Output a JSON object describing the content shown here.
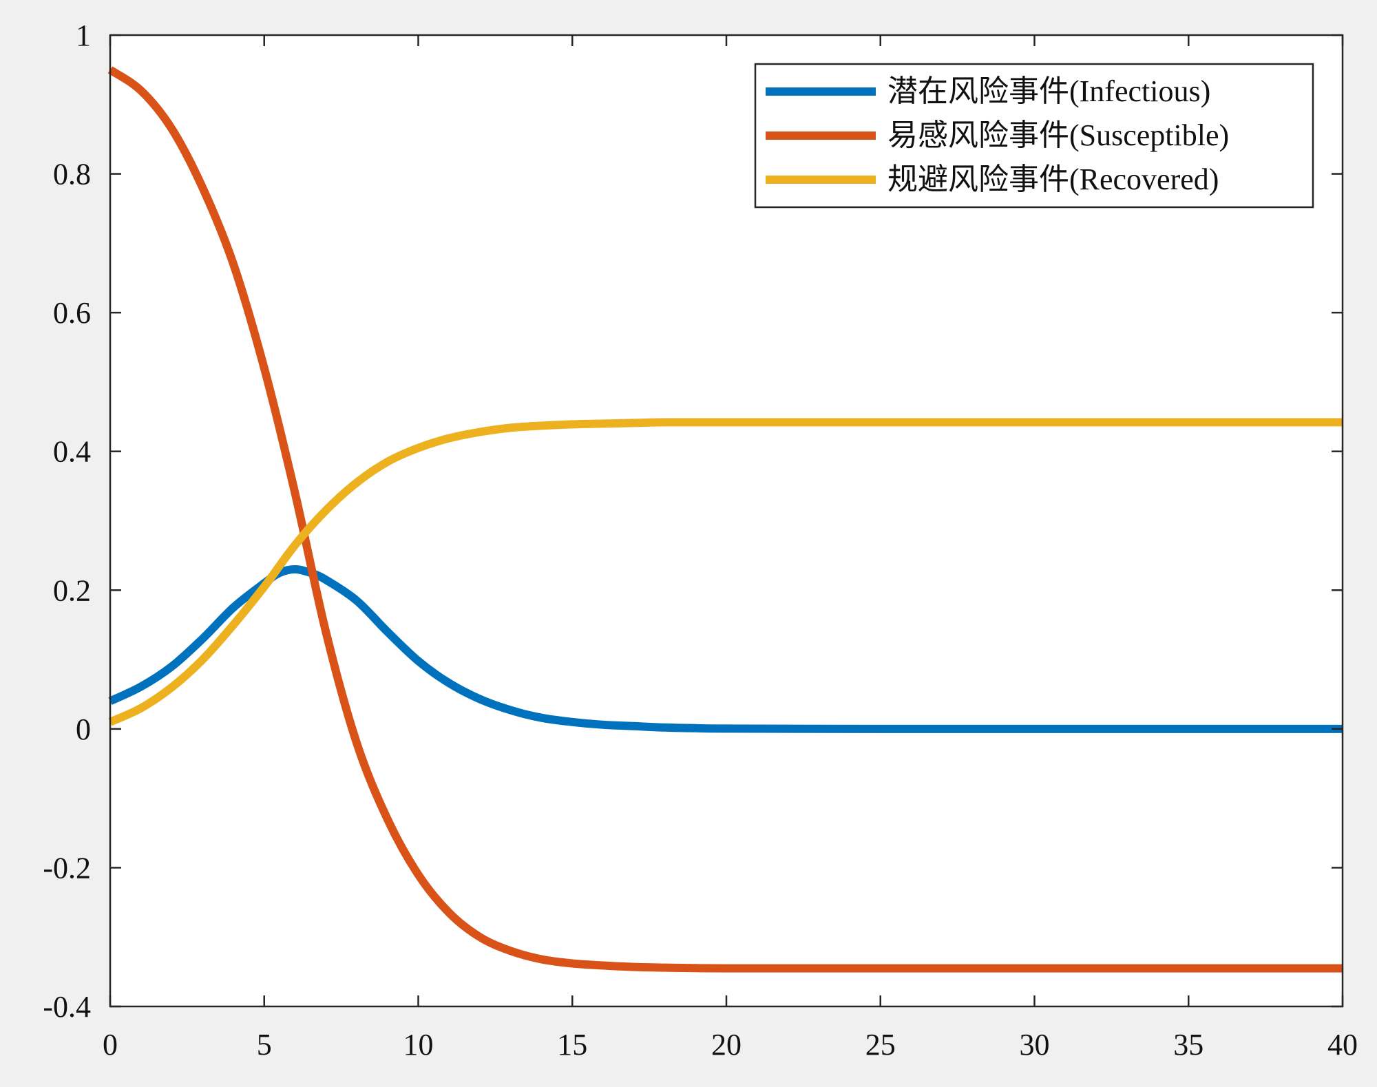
{
  "chart_data": {
    "type": "line",
    "title": "",
    "xlabel": "",
    "ylabel": "",
    "xlim": [
      0,
      40
    ],
    "ylim": [
      -0.4,
      1
    ],
    "x_ticks": [
      0,
      5,
      10,
      15,
      20,
      25,
      30,
      35,
      40
    ],
    "x_tick_labels": [
      "0",
      "5",
      "10",
      "15",
      "20",
      "25",
      "30",
      "35",
      "40"
    ],
    "y_ticks": [
      -0.4,
      -0.2,
      0,
      0.2,
      0.4,
      0.6,
      0.8,
      1
    ],
    "y_tick_labels": [
      "-0.4",
      "-0.2",
      "0",
      "0.2",
      "0.4",
      "0.6",
      "0.8",
      "1"
    ],
    "grid": false,
    "legend_position": "top-right",
    "series": [
      {
        "name": "潜在风险事件(Infectious)",
        "color": "#0072BD",
        "points": [
          [
            0,
            0.04
          ],
          [
            1,
            0.061
          ],
          [
            2,
            0.09
          ],
          [
            3,
            0.13
          ],
          [
            4,
            0.175
          ],
          [
            5,
            0.21
          ],
          [
            5.5,
            0.225
          ],
          [
            6,
            0.23
          ],
          [
            6.5,
            0.225
          ],
          [
            7,
            0.215
          ],
          [
            8,
            0.185
          ],
          [
            9,
            0.14
          ],
          [
            10,
            0.098
          ],
          [
            11,
            0.066
          ],
          [
            12,
            0.043
          ],
          [
            13,
            0.027
          ],
          [
            14,
            0.016
          ],
          [
            15,
            0.01
          ],
          [
            16,
            0.006
          ],
          [
            17,
            0.004
          ],
          [
            18,
            0.002
          ],
          [
            19,
            0.001
          ],
          [
            20,
            0.0005
          ],
          [
            25,
            0
          ],
          [
            30,
            0
          ],
          [
            35,
            0
          ],
          [
            40,
            0
          ]
        ]
      },
      {
        "name": "易感风险事件(Susceptible)",
        "color": "#D95319",
        "points": [
          [
            0,
            0.95
          ],
          [
            1,
            0.92
          ],
          [
            2,
            0.865
          ],
          [
            3,
            0.78
          ],
          [
            4,
            0.67
          ],
          [
            5,
            0.52
          ],
          [
            6,
            0.34
          ],
          [
            7,
            0.14
          ],
          [
            8,
            -0.02
          ],
          [
            9,
            -0.13
          ],
          [
            10,
            -0.21
          ],
          [
            11,
            -0.265
          ],
          [
            12,
            -0.3
          ],
          [
            13,
            -0.32
          ],
          [
            14,
            -0.332
          ],
          [
            15,
            -0.338
          ],
          [
            16,
            -0.341
          ],
          [
            17,
            -0.343
          ],
          [
            18,
            -0.344
          ],
          [
            20,
            -0.345
          ],
          [
            25,
            -0.345
          ],
          [
            30,
            -0.345
          ],
          [
            35,
            -0.345
          ],
          [
            40,
            -0.345
          ]
        ]
      },
      {
        "name": "规避风险事件(Recovered)",
        "color": "#EDB120",
        "points": [
          [
            0,
            0.01
          ],
          [
            1,
            0.03
          ],
          [
            2,
            0.06
          ],
          [
            3,
            0.1
          ],
          [
            4,
            0.15
          ],
          [
            5,
            0.205
          ],
          [
            6,
            0.265
          ],
          [
            7,
            0.315
          ],
          [
            8,
            0.355
          ],
          [
            9,
            0.385
          ],
          [
            10,
            0.405
          ],
          [
            11,
            0.419
          ],
          [
            12,
            0.428
          ],
          [
            13,
            0.434
          ],
          [
            14,
            0.437
          ],
          [
            15,
            0.439
          ],
          [
            16,
            0.44
          ],
          [
            17,
            0.441
          ],
          [
            18,
            0.442
          ],
          [
            20,
            0.442
          ],
          [
            25,
            0.442
          ],
          [
            30,
            0.442
          ],
          [
            35,
            0.442
          ],
          [
            40,
            0.442
          ]
        ]
      }
    ]
  }
}
